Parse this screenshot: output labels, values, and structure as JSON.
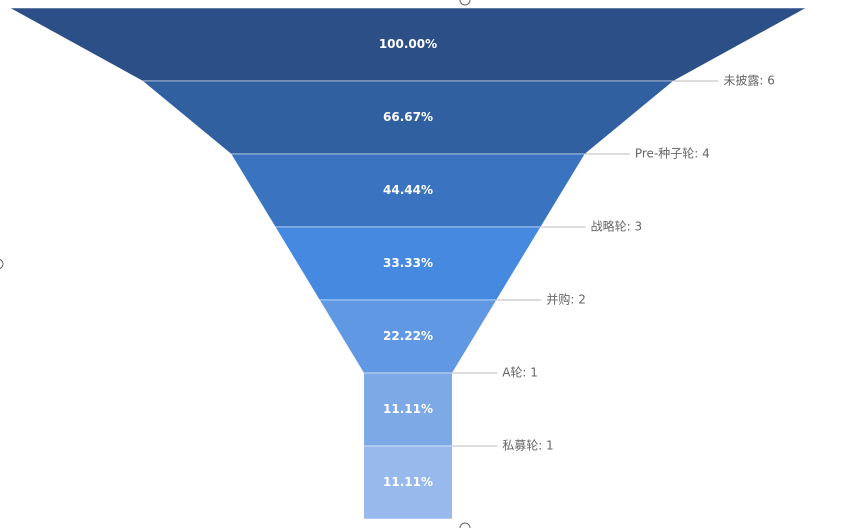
{
  "chart_data": {
    "type": "funnel",
    "categories": [
      null,
      "未披露: 6",
      "Pre-种子轮: 4",
      "战略轮: 3",
      "并购: 2",
      "A轮: 1",
      "私募轮: 1"
    ],
    "values": [
      100,
      66.67,
      44.44,
      33.33,
      22.22,
      11.11,
      11.11
    ],
    "value_labels": [
      "100.00%",
      "66.67%",
      "44.44%",
      "33.33%",
      "22.22%",
      "11.11%",
      "11.11%"
    ],
    "colors": [
      "#2c4f87",
      "#30609f",
      "#3a74c0",
      "#4589e0",
      "#6098e4",
      "#7ea9e7",
      "#97b9ec"
    ]
  }
}
